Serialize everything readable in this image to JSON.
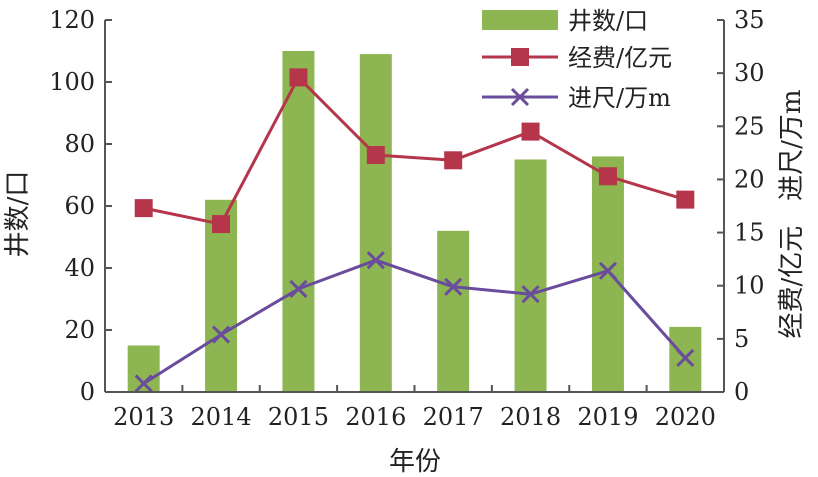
{
  "chart_data": {
    "type": "bar",
    "x": [
      "2013",
      "2014",
      "2015",
      "2016",
      "2017",
      "2018",
      "2019",
      "2020"
    ],
    "xlabel": "年份",
    "ylabel_left": "井数/口",
    "ylabel_right": "经费/亿元   进尺/万m",
    "ylim_left": [
      0,
      120
    ],
    "yticks_left": [
      "0",
      "20",
      "40",
      "60",
      "80",
      "100",
      "120"
    ],
    "ylim_right": [
      0,
      35
    ],
    "yticks_right": [
      "0",
      "5",
      "10",
      "15",
      "20",
      "25",
      "30",
      "35"
    ],
    "grid": false,
    "legend_position": "top-right",
    "series": [
      {
        "name": "井数/口",
        "type": "bar",
        "axis": "left",
        "color": "#8db652",
        "values": [
          15,
          62,
          110,
          109,
          52,
          75,
          76,
          21
        ]
      },
      {
        "name": "经费/亿元",
        "type": "line",
        "marker": "square",
        "axis": "right",
        "color": "#b5354b",
        "values": [
          17.3,
          15.8,
          29.6,
          22.3,
          21.8,
          24.5,
          20.3,
          18.1
        ]
      },
      {
        "name": "进尺/万m",
        "type": "line",
        "marker": "x",
        "axis": "right",
        "color": "#6a4c9c",
        "values": [
          0.8,
          5.4,
          9.7,
          12.4,
          9.9,
          9.2,
          11.4,
          3.2
        ]
      }
    ]
  }
}
